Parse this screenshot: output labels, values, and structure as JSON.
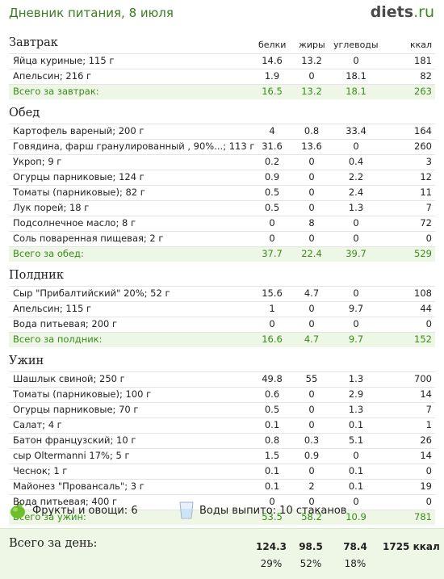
{
  "header": {
    "title": "Дневник питания, 8 июля",
    "logo_main": "diets",
    "logo_domain": ".ru"
  },
  "columns": {
    "protein": "белки",
    "fat": "жиры",
    "carbs": "углеводы",
    "kcal": "ккал"
  },
  "meals": [
    {
      "title": "Завтрак",
      "items": [
        {
          "name": "Яйца куриные; 115 г",
          "protein": "14.6",
          "fat": "13.2",
          "carbs": "0",
          "kcal": "181"
        },
        {
          "name": "Апельсин; 216 г",
          "protein": "1.9",
          "fat": "0",
          "carbs": "18.1",
          "kcal": "82"
        }
      ],
      "total": {
        "name": "Всего за завтрак:",
        "protein": "16.5",
        "fat": "13.2",
        "carbs": "18.1",
        "kcal": "263"
      }
    },
    {
      "title": "Обед",
      "items": [
        {
          "name": "Картофель вареный; 200 г",
          "protein": "4",
          "fat": "0.8",
          "carbs": "33.4",
          "kcal": "164"
        },
        {
          "name": "Говядина, фарш гранулированный , 90%...; 113 г",
          "protein": "31.6",
          "fat": "13.6",
          "carbs": "0",
          "kcal": "260"
        },
        {
          "name": "Укроп; 9 г",
          "protein": "0.2",
          "fat": "0",
          "carbs": "0.4",
          "kcal": "3"
        },
        {
          "name": "Огурцы парниковые; 124 г",
          "protein": "0.9",
          "fat": "0",
          "carbs": "2.2",
          "kcal": "12"
        },
        {
          "name": "Томаты (парниковые); 82 г",
          "protein": "0.5",
          "fat": "0",
          "carbs": "2.4",
          "kcal": "11"
        },
        {
          "name": "Лук порей; 18 г",
          "protein": "0.5",
          "fat": "0",
          "carbs": "1.3",
          "kcal": "7"
        },
        {
          "name": "Подсолнечное масло; 8 г",
          "protein": "0",
          "fat": "8",
          "carbs": "0",
          "kcal": "72"
        },
        {
          "name": "Соль поваренная пищевая; 2 г",
          "protein": "0",
          "fat": "0",
          "carbs": "0",
          "kcal": "0"
        }
      ],
      "total": {
        "name": "Всего за обед:",
        "protein": "37.7",
        "fat": "22.4",
        "carbs": "39.7",
        "kcal": "529"
      }
    },
    {
      "title": "Полдник",
      "items": [
        {
          "name": "Сыр \"Прибалтийский\" 20%; 52 г",
          "protein": "15.6",
          "fat": "4.7",
          "carbs": "0",
          "kcal": "108"
        },
        {
          "name": "Апельсин; 115 г",
          "protein": "1",
          "fat": "0",
          "carbs": "9.7",
          "kcal": "44"
        },
        {
          "name": "Вода питьевая; 200 г",
          "protein": "0",
          "fat": "0",
          "carbs": "0",
          "kcal": "0"
        }
      ],
      "total": {
        "name": "Всего за полдник:",
        "protein": "16.6",
        "fat": "4.7",
        "carbs": "9.7",
        "kcal": "152"
      }
    },
    {
      "title": "Ужин",
      "items": [
        {
          "name": "Шашлык свиной; 250 г",
          "protein": "49.8",
          "fat": "55",
          "carbs": "1.3",
          "kcal": "700"
        },
        {
          "name": "Томаты (парниковые); 100 г",
          "protein": "0.6",
          "fat": "0",
          "carbs": "2.9",
          "kcal": "14"
        },
        {
          "name": "Огурцы парниковые; 70 г",
          "protein": "0.5",
          "fat": "0",
          "carbs": "1.3",
          "kcal": "7"
        },
        {
          "name": "Салат; 4 г",
          "protein": "0.1",
          "fat": "0",
          "carbs": "0.1",
          "kcal": "1"
        },
        {
          "name": "Батон французский; 10 г",
          "protein": "0.8",
          "fat": "0.3",
          "carbs": "5.1",
          "kcal": "26"
        },
        {
          "name": "сыр Oltermanni 17%; 5 г",
          "protein": "1.5",
          "fat": "0.9",
          "carbs": "0",
          "kcal": "14"
        },
        {
          "name": "Чеснок; 1 г",
          "protein": "0.1",
          "fat": "0",
          "carbs": "0.1",
          "kcal": "0"
        },
        {
          "name": "Майонез \"Провансаль\"; 3 г",
          "protein": "0.1",
          "fat": "2",
          "carbs": "0.1",
          "kcal": "19"
        },
        {
          "name": "Вода питьевая; 400 г",
          "protein": "0",
          "fat": "0",
          "carbs": "0",
          "kcal": "0"
        }
      ],
      "total": {
        "name": "Всего за ужин:",
        "protein": "53.5",
        "fat": "58.2",
        "carbs": "10.9",
        "kcal": "781"
      }
    }
  ],
  "extras": {
    "fruits": "Фрукты и овощи: 6",
    "water": "Воды выпито: 10 стаканов",
    "apple_icon": "apple-icon",
    "glass_icon": "water-glass-icon"
  },
  "day_total": {
    "label": "Всего за день:",
    "protein": "124.3",
    "fat": "98.5",
    "carbs": "78.4",
    "kcal": "1725 ккал",
    "protein_pct": "29%",
    "fat_pct": "52%",
    "carbs_pct": "18%"
  },
  "colors": {
    "accent": "#3a8a1c",
    "total_bg": "#eef7e6"
  }
}
